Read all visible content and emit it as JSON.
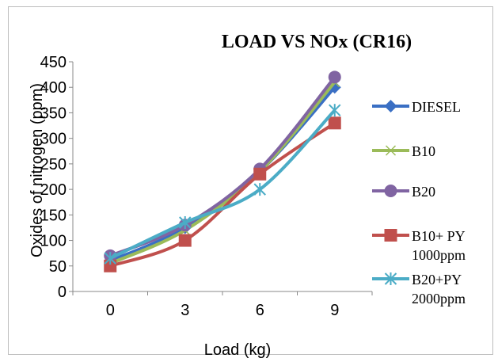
{
  "chart_data": {
    "type": "line",
    "title": "LOAD VS NOx (CR16)",
    "xlabel": "Load (kg)",
    "ylabel": "Oxides of nitrogen (ppm)",
    "categories": [
      "0",
      "3",
      "6",
      "9"
    ],
    "ylim": [
      0,
      450
    ],
    "yticks": [
      "0",
      "50",
      "100",
      "150",
      "200",
      "250",
      "300",
      "350",
      "400",
      "450"
    ],
    "grid": false,
    "legend_position": "right",
    "series": [
      {
        "name": "DIESEL",
        "values": [
          60,
          125,
          235,
          400
        ],
        "color": "#3a6fc4",
        "marker": "diamond"
      },
      {
        "name": "B10",
        "values": [
          55,
          120,
          235,
          410
        ],
        "color": "#9bbb59",
        "marker": "x"
      },
      {
        "name": "B20",
        "values": [
          70,
          130,
          240,
          420
        ],
        "color": "#8064a2",
        "marker": "circle"
      },
      {
        "name": "B10+ PY 1000ppm",
        "legend_lines": [
          "B10+ PY",
          "1000ppm"
        ],
        "values": [
          50,
          100,
          230,
          330
        ],
        "color": "#c0504d",
        "marker": "square"
      },
      {
        "name": "B20+PY 2000ppm",
        "legend_lines": [
          "B20+PY",
          "2000ppm"
        ],
        "values": [
          65,
          135,
          200,
          355
        ],
        "color": "#4bacc6",
        "marker": "asterisk"
      }
    ]
  }
}
